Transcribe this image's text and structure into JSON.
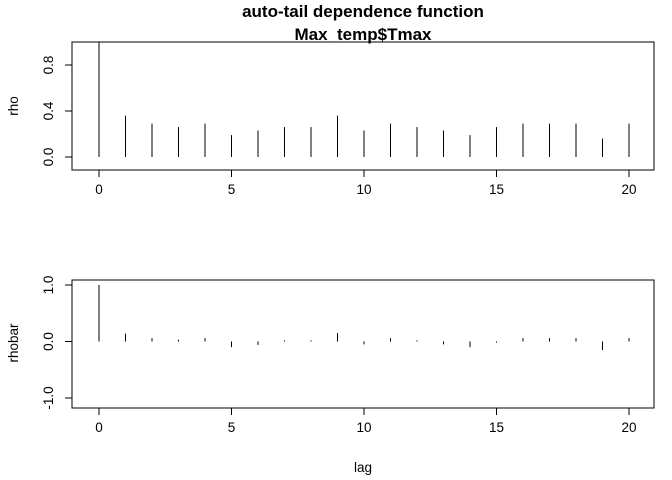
{
  "figure": {
    "title_line1": "auto-tail dependence function",
    "title_line2": "Max_temp$Tmax"
  },
  "chart_data": [
    {
      "type": "bar",
      "name": "rho",
      "ylabel": "rho",
      "xlabel": "",
      "x": [
        0,
        1,
        2,
        3,
        4,
        5,
        6,
        7,
        8,
        9,
        10,
        11,
        12,
        13,
        14,
        15,
        16,
        17,
        18,
        19,
        20
      ],
      "values": [
        1.0,
        0.36,
        0.29,
        0.26,
        0.29,
        0.19,
        0.23,
        0.26,
        0.26,
        0.36,
        0.23,
        0.29,
        0.26,
        0.23,
        0.19,
        0.26,
        0.29,
        0.29,
        0.29,
        0.16,
        0.29
      ],
      "xlim": [
        0,
        20
      ],
      "ylim": [
        0,
        1
      ],
      "xticks": [
        "0",
        "5",
        "10",
        "15",
        "20"
      ],
      "yticks": [
        "0.0",
        "0.4",
        "0.8"
      ],
      "grid": false
    },
    {
      "type": "bar",
      "name": "rhobar",
      "ylabel": "rhobar",
      "xlabel": "lag",
      "x": [
        0,
        1,
        2,
        3,
        4,
        5,
        6,
        7,
        8,
        9,
        10,
        11,
        12,
        13,
        14,
        15,
        16,
        17,
        18,
        19,
        20
      ],
      "values": [
        1.0,
        0.14,
        0.06,
        0.03,
        0.06,
        -0.1,
        -0.06,
        0.02,
        0.02,
        0.15,
        -0.05,
        0.06,
        0.02,
        -0.05,
        -0.1,
        -0.02,
        0.06,
        0.06,
        0.06,
        -0.15,
        0.06
      ],
      "xlim": [
        0,
        20
      ],
      "ylim": [
        -1,
        1
      ],
      "xticks": [
        "0",
        "5",
        "10",
        "15",
        "20"
      ],
      "yticks": [
        "-1.0",
        "0.0",
        "1.0"
      ],
      "grid": false
    }
  ]
}
